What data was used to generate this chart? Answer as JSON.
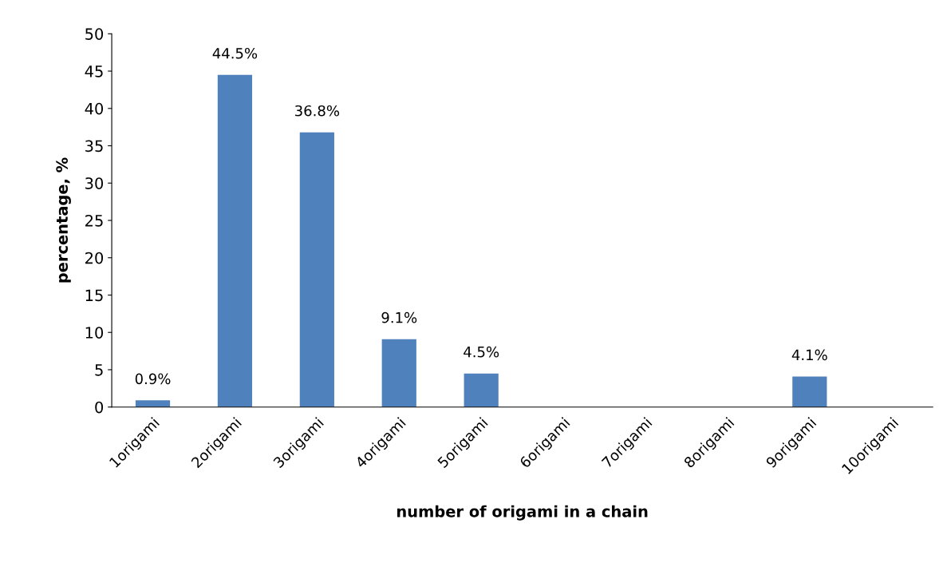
{
  "chart_data": {
    "type": "bar",
    "xlabel": "number of origami in a chain",
    "ylabel": "percentage, %",
    "categories": [
      "1origami",
      "2origami",
      "3origami",
      "4origami",
      "5origami",
      "6origami",
      "7origami",
      "8origami",
      "9origami",
      "10origami"
    ],
    "values": [
      0.9,
      44.5,
      36.8,
      9.1,
      4.5,
      null,
      null,
      null,
      4.1,
      null
    ],
    "value_labels": [
      "0.9%",
      "44.5%",
      "36.8%",
      "9.1%",
      "4.5%",
      null,
      null,
      null,
      "4.1%",
      null
    ],
    "color": "#4f81bd",
    "ylim": [
      0,
      50
    ],
    "yticks": [
      0,
      5,
      10,
      15,
      20,
      25,
      30,
      35,
      40,
      45,
      50
    ],
    "grid": false,
    "legend": false
  }
}
